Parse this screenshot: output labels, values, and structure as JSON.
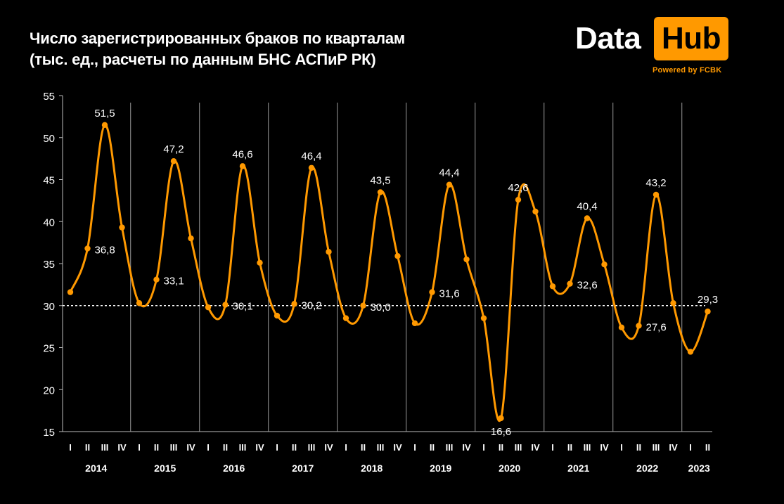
{
  "header": {
    "title_line1": "Число зарегистрированных браков по кварталам",
    "title_line2": "(тыс. ед., расчеты по данным БНС АСПиР РК)"
  },
  "logo": {
    "word1": "Data",
    "word2": "Hub",
    "powered": "Powered by FCBK",
    "accent_color": "#ff9900"
  },
  "chart_data": {
    "type": "line",
    "title": "Число зарегистрированных браков по кварталам",
    "subtitle": "(тыс. ед., расчеты по данным БНС АСПиР РК)",
    "xlabel": "",
    "ylabel": "",
    "ylim": [
      15,
      55
    ],
    "yticks": [
      15,
      20,
      25,
      30,
      35,
      40,
      45,
      50,
      55
    ],
    "reference_line": 30,
    "line_color": "#ff9900",
    "grid": false,
    "quarters": [
      "I",
      "II",
      "III",
      "IV",
      "I",
      "II",
      "III",
      "IV",
      "I",
      "II",
      "III",
      "IV",
      "I",
      "II",
      "III",
      "IV",
      "I",
      "II",
      "III",
      "IV",
      "I",
      "II",
      "III",
      "IV",
      "I",
      "II",
      "III",
      "IV",
      "I",
      "II",
      "III",
      "IV",
      "I",
      "II",
      "III",
      "IV",
      "I",
      "II"
    ],
    "years": [
      {
        "label": "2014",
        "quarters": 4
      },
      {
        "label": "2015",
        "quarters": 4
      },
      {
        "label": "2016",
        "quarters": 4
      },
      {
        "label": "2017",
        "quarters": 4
      },
      {
        "label": "2018",
        "quarters": 4
      },
      {
        "label": "2019",
        "quarters": 4
      },
      {
        "label": "2020",
        "quarters": 4
      },
      {
        "label": "2021",
        "quarters": 4
      },
      {
        "label": "2022",
        "quarters": 4
      },
      {
        "label": "2023",
        "quarters": 2
      }
    ],
    "values": [
      31.6,
      36.8,
      51.5,
      39.3,
      30.3,
      33.1,
      47.2,
      38.0,
      29.8,
      30.1,
      46.6,
      35.1,
      28.8,
      30.2,
      46.4,
      36.4,
      28.5,
      30.0,
      43.5,
      35.9,
      27.9,
      31.6,
      44.4,
      35.5,
      28.5,
      16.6,
      42.6,
      41.2,
      32.3,
      32.6,
      40.4,
      34.9,
      27.4,
      27.6,
      43.2,
      30.3,
      24.5,
      29.3
    ],
    "data_labels": [
      {
        "index": 1,
        "text": "36,8"
      },
      {
        "index": 2,
        "text": "51,5"
      },
      {
        "index": 5,
        "text": "33,1"
      },
      {
        "index": 6,
        "text": "47,2"
      },
      {
        "index": 9,
        "text": "30,1"
      },
      {
        "index": 10,
        "text": "46,6"
      },
      {
        "index": 13,
        "text": "30,2"
      },
      {
        "index": 14,
        "text": "46,4"
      },
      {
        "index": 17,
        "text": "30,0"
      },
      {
        "index": 18,
        "text": "43,5"
      },
      {
        "index": 21,
        "text": "31,6"
      },
      {
        "index": 22,
        "text": "44,4"
      },
      {
        "index": 25,
        "text": "16,6"
      },
      {
        "index": 26,
        "text": "42,6"
      },
      {
        "index": 29,
        "text": "32,6"
      },
      {
        "index": 30,
        "text": "40,4"
      },
      {
        "index": 33,
        "text": "27,6"
      },
      {
        "index": 34,
        "text": "43,2"
      },
      {
        "index": 37,
        "text": "29,3"
      }
    ]
  }
}
